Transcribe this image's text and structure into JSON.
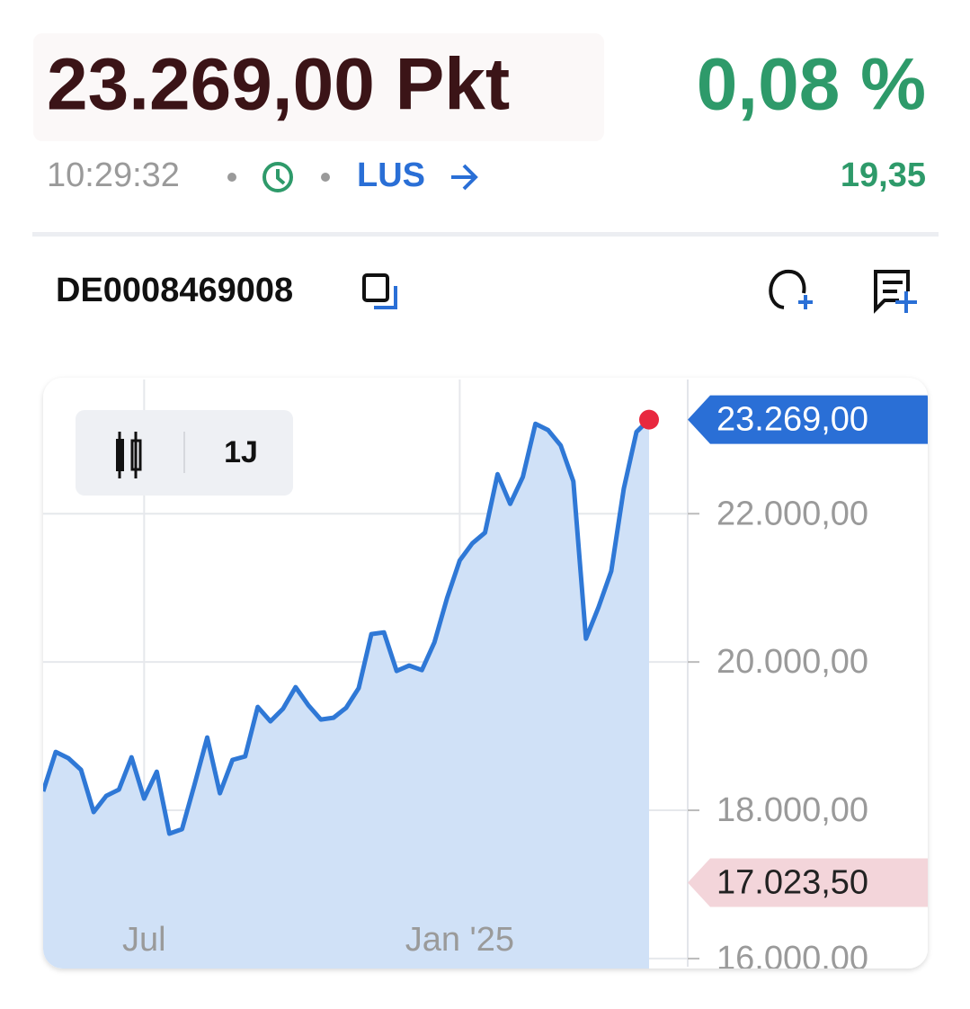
{
  "header": {
    "price": "23.269,00 Pkt",
    "change_pct": "0,08 %",
    "time": "10:29:32",
    "exchange": "LUS",
    "change_abs": "19,35"
  },
  "isin": "DE0008469008",
  "chart_controls": {
    "period": "1J"
  },
  "chart_data": {
    "type": "area",
    "categories": [
      null,
      null,
      null,
      null,
      null,
      null,
      null,
      null,
      "Jul",
      null,
      null,
      null,
      null,
      null,
      null,
      null,
      null,
      null,
      null,
      null,
      null,
      null,
      null,
      null,
      null,
      null,
      null,
      null,
      null,
      null,
      null,
      null,
      null,
      "Jan '25",
      null,
      null,
      null,
      null,
      null,
      null,
      null,
      null,
      null,
      null,
      null,
      null,
      null,
      null,
      null
    ],
    "series": [
      {
        "color": "#2f78d6",
        "values": [
          18255,
          18788,
          18703,
          18546,
          17976,
          18194,
          18279,
          18715,
          18158,
          18521,
          17685,
          17746,
          18352,
          18982,
          18230,
          18679,
          18727,
          19394,
          19200,
          19370,
          19661,
          19418,
          19224,
          19248,
          19382,
          19648,
          20376,
          20400,
          19879,
          19952,
          19891,
          20267,
          20861,
          21370,
          21600,
          21745,
          22533,
          22133,
          22497,
          23212,
          23127,
          22921,
          22436,
          20315,
          20739,
          21224,
          22339,
          23103,
          23269
        ]
      }
    ],
    "fill_color": "#d0e1f7",
    "ylim": [
      15890,
      23810
    ],
    "yticks": [
      {
        "value": 16000,
        "label": "16.000,00"
      },
      {
        "value": 18000,
        "label": "18.000,00"
      },
      {
        "value": 20000,
        "label": "20.000,00"
      },
      {
        "value": 22000,
        "label": "22.000,00"
      }
    ],
    "grid": true,
    "current": {
      "value": 23269,
      "label": "23.269,00",
      "color": "#2a6fd6"
    },
    "low": {
      "value": 17023.5,
      "label": "17.023,50",
      "color": "#f3d5da"
    },
    "last_point_color": "#e8283f"
  }
}
